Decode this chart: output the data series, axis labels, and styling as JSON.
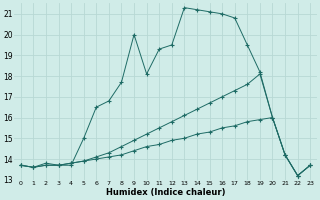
{
  "xlabel": "Humidex (Indice chaleur)",
  "bg_color": "#d0ece8",
  "grid_color": "#b8d8d4",
  "line_color": "#1e6b65",
  "xlim": [
    -0.5,
    23.5
  ],
  "ylim": [
    13,
    21.5
  ],
  "yticks": [
    13,
    14,
    15,
    16,
    17,
    18,
    19,
    20,
    21
  ],
  "xticks": [
    0,
    1,
    2,
    3,
    4,
    5,
    6,
    7,
    8,
    9,
    10,
    11,
    12,
    13,
    14,
    15,
    16,
    17,
    18,
    19,
    20,
    21,
    22,
    23
  ],
  "series1_x": [
    0,
    1,
    2,
    3,
    4,
    5,
    6,
    7,
    8,
    9,
    10,
    11,
    12,
    13,
    14,
    15,
    16,
    17,
    18,
    19,
    20,
    21,
    22,
    23
  ],
  "series1_y": [
    13.7,
    13.6,
    13.8,
    13.7,
    13.7,
    15.0,
    16.5,
    16.8,
    17.7,
    20.0,
    18.1,
    19.3,
    19.5,
    21.3,
    21.2,
    21.1,
    21.0,
    20.8,
    19.5,
    18.2,
    16.0,
    14.2,
    13.2,
    13.7
  ],
  "series2_x": [
    0,
    1,
    2,
    3,
    4,
    5,
    6,
    7,
    8,
    9,
    10,
    11,
    12,
    13,
    14,
    15,
    16,
    17,
    18,
    19,
    20,
    21,
    22,
    23
  ],
  "series2_y": [
    13.7,
    13.6,
    13.7,
    13.7,
    13.8,
    13.9,
    14.1,
    14.3,
    14.6,
    14.9,
    15.2,
    15.5,
    15.8,
    16.1,
    16.4,
    16.7,
    17.0,
    17.3,
    17.6,
    18.1,
    16.0,
    14.2,
    13.2,
    13.7
  ],
  "series3_x": [
    0,
    1,
    2,
    3,
    4,
    5,
    6,
    7,
    8,
    9,
    10,
    11,
    12,
    13,
    14,
    15,
    16,
    17,
    18,
    19,
    20,
    21,
    22,
    23
  ],
  "series3_y": [
    13.7,
    13.6,
    13.7,
    13.7,
    13.8,
    13.9,
    14.0,
    14.1,
    14.2,
    14.4,
    14.6,
    14.7,
    14.9,
    15.0,
    15.2,
    15.3,
    15.5,
    15.6,
    15.8,
    15.9,
    16.0,
    14.2,
    13.2,
    13.7
  ]
}
